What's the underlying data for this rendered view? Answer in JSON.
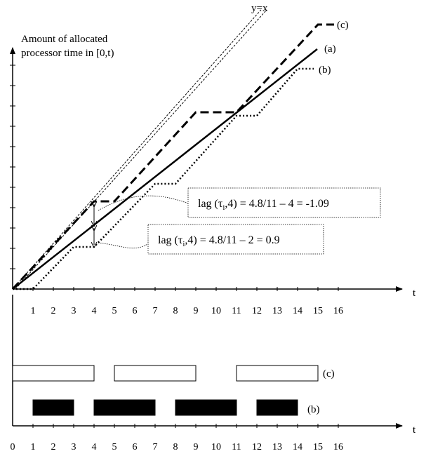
{
  "top_axis": {
    "ylabel_line1": "Amount of allocated",
    "ylabel_line2": "processor time in [0,t)",
    "xlabel": "t"
  },
  "bottom_axis": {
    "xlabel": "t"
  },
  "ticks_top": [
    "1",
    "2",
    "3",
    "4",
    "5",
    "6",
    "7",
    "8",
    "9",
    "10",
    "11",
    "12",
    "13",
    "14",
    "15",
    "16"
  ],
  "ticks_bottom": [
    "0",
    "1",
    "2",
    "3",
    "4",
    "5",
    "6",
    "7",
    "8",
    "9",
    "10",
    "11",
    "12",
    "13",
    "14",
    "15",
    "16"
  ],
  "lines": {
    "yx_label": "y=x",
    "c_label": "(c)",
    "a_label": "(a)",
    "b_label": "(b)"
  },
  "annotations": {
    "lag_c": "lag (τi,4) = 4.8/11 – 4 = -1.09",
    "lag_b": "lag (τi,4) = 4.8/11 – 2 = 0.9"
  },
  "schedule": {
    "c_label": "(c)",
    "b_label": "(b)",
    "c_intervals": [
      [
        0,
        4
      ],
      [
        5,
        9
      ],
      [
        11,
        15
      ]
    ],
    "b_intervals": [
      [
        1,
        3
      ],
      [
        4,
        7
      ],
      [
        8,
        11
      ],
      [
        12,
        14
      ]
    ]
  },
  "chart_data": {
    "type": "line",
    "xlabel": "t",
    "ylabel": "Amount of allocated processor time in [0,t)",
    "xlim": [
      0,
      16
    ],
    "series": [
      {
        "name": "y=x",
        "x": [
          0,
          12.2
        ],
        "y": [
          0,
          12.2
        ]
      },
      {
        "name": "(c)",
        "x": [
          0,
          4,
          5,
          9,
          11,
          15,
          15.8
        ],
        "y": [
          0,
          4,
          4,
          8,
          8,
          12,
          12
        ]
      },
      {
        "name": "(a)",
        "x": [
          0,
          15
        ],
        "y": [
          0,
          9.6
        ]
      },
      {
        "name": "(b)",
        "x": [
          0,
          1,
          3,
          4,
          7,
          8,
          11,
          12,
          14,
          14.8
        ],
        "y": [
          0,
          0,
          2,
          2,
          5,
          5,
          8,
          8,
          10,
          10
        ]
      }
    ]
  }
}
